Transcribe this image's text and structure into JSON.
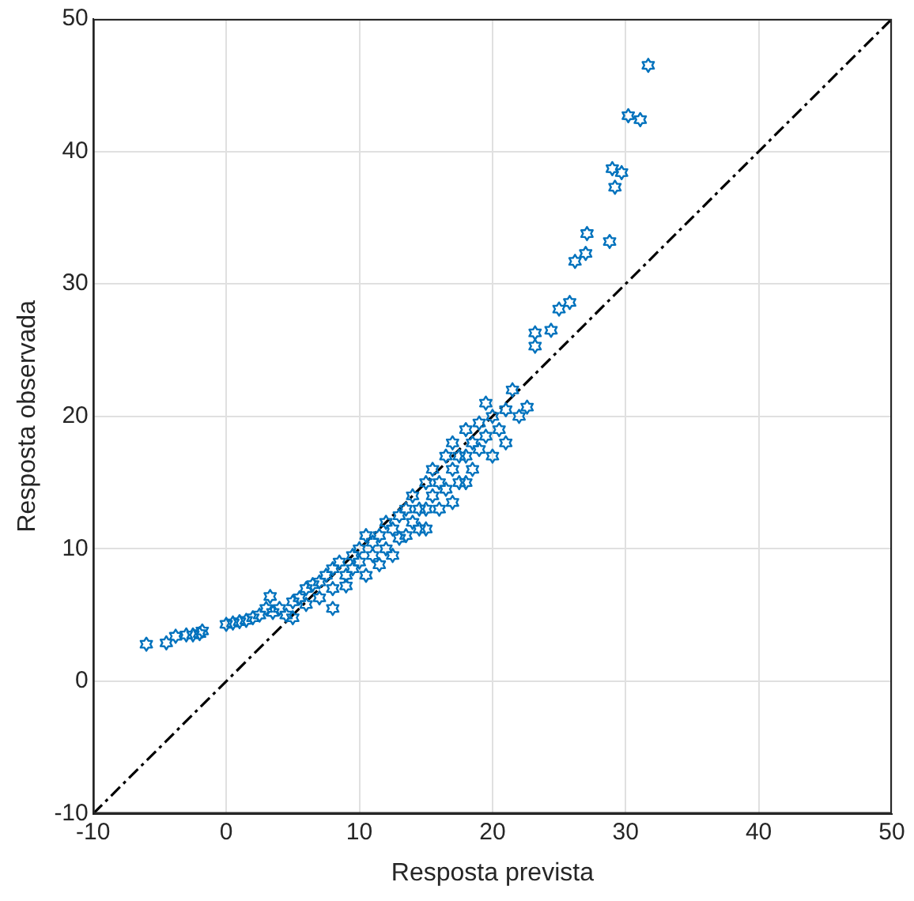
{
  "chart_data": {
    "type": "scatter",
    "xlabel": "Resposta prevista",
    "ylabel": "Resposta observada",
    "xlim": [
      -10,
      50
    ],
    "ylim": [
      -10,
      50
    ],
    "xticks": [
      -10,
      0,
      10,
      20,
      30,
      40,
      50
    ],
    "yticks": [
      -10,
      0,
      10,
      20,
      30,
      40,
      50
    ],
    "grid": true,
    "legend": false,
    "series": [
      {
        "color": "#0072bd",
        "x": [
          -6,
          -4.5,
          -3.8,
          -3,
          -2.5,
          -2,
          -1.8,
          0,
          0.5,
          1,
          1.5,
          2,
          2.5,
          3,
          3.3,
          3.5,
          4,
          4.5,
          5,
          5,
          5.5,
          6,
          6,
          6.5,
          7,
          7,
          7.5,
          8,
          8,
          8,
          8.5,
          9,
          9,
          9.5,
          9.5,
          10,
          10,
          10.5,
          10.5,
          11,
          11,
          11.5,
          11.5,
          12,
          12,
          12.5,
          12.5,
          13,
          13,
          13.5,
          13.5,
          14,
          14,
          14.5,
          14.5,
          15,
          15,
          15,
          15.5,
          15.5,
          16,
          16,
          16.5,
          16.5,
          17,
          17,
          17,
          17.5,
          17.5,
          18,
          18,
          18,
          18.5,
          18.5,
          19,
          19,
          19.5,
          19.5,
          20,
          20,
          20.5,
          21,
          21,
          21.5,
          22,
          22.6,
          23.2,
          23.2,
          24.4,
          25,
          25.8,
          26.2,
          27,
          27.1,
          28.8,
          29,
          29.2,
          29.7,
          30.2,
          31.1,
          31.7
        ],
        "values": [
          2.8,
          2.9,
          3.4,
          3.5,
          3.5,
          3.6,
          3.8,
          4.3,
          4.4,
          4.5,
          4.6,
          4.8,
          5,
          5.5,
          6.4,
          5.2,
          5.5,
          5,
          6,
          4.8,
          6.3,
          7,
          5.8,
          7.3,
          7.5,
          6.3,
          8,
          7,
          8.5,
          5.5,
          9,
          8,
          7.2,
          9.5,
          8.5,
          10,
          9,
          11,
          8,
          10.5,
          9.5,
          11,
          8.8,
          12,
          10,
          11.5,
          9.5,
          12.5,
          10.8,
          13,
          11,
          12,
          14,
          13,
          11.5,
          15,
          13,
          11.5,
          16,
          14,
          15,
          13,
          17,
          14.5,
          18,
          16,
          13.5,
          17,
          15,
          19,
          17,
          15,
          18,
          16,
          19.5,
          17.5,
          21,
          18.5,
          20,
          17,
          19,
          20.5,
          18,
          22,
          20,
          20.7,
          26.3,
          25.3,
          26.5,
          28.1,
          28.6,
          31.7,
          32.3,
          33.8,
          33.2,
          38.7,
          37.3,
          38.4,
          42.7,
          42.4,
          46.5
        ]
      },
      {
        "type": "line",
        "color": "#000000",
        "marker": "none",
        "line_style": "dashed",
        "x": [
          -10,
          50
        ],
        "values": [
          -10,
          50
        ]
      }
    ]
  }
}
